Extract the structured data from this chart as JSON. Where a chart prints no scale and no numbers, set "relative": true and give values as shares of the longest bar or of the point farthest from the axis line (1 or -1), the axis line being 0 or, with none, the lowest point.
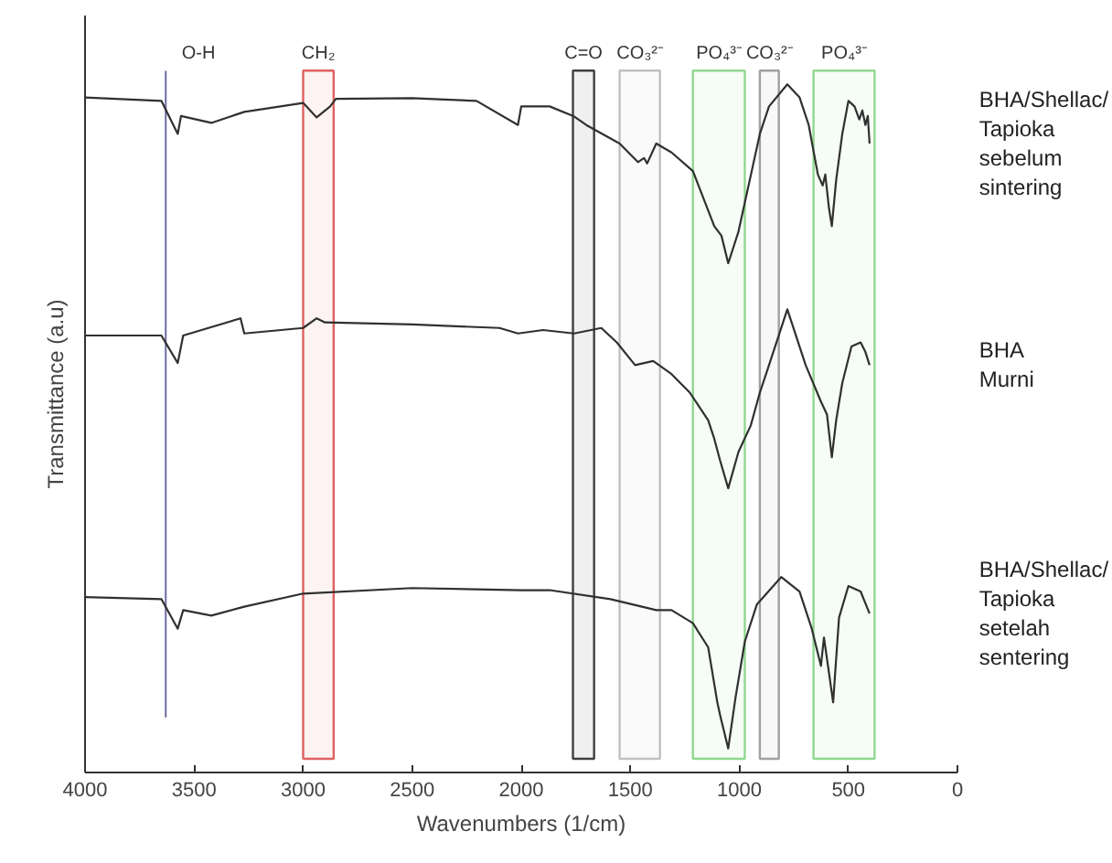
{
  "chart_data": {
    "type": "line",
    "relative": true,
    "xlabel": "Wavenumbers (1/cm)",
    "ylabel": "Transmittance (a.u)",
    "xlim": [
      4000,
      0
    ],
    "xticks": [
      4000,
      3500,
      3000,
      2500,
      2000,
      1500,
      1000,
      500,
      0
    ],
    "grid": false,
    "ref_lines": [
      {
        "axis": "x",
        "value": 3630,
        "label": "O-H",
        "color": "#6a6aa0"
      }
    ],
    "bands": [
      {
        "axis": "x",
        "from": 3000,
        "to": 2860,
        "label": "CH₂",
        "color": "#e06060"
      },
      {
        "axis": "x",
        "from": 1763,
        "to": 1666,
        "label": "C=O",
        "color": "#404040"
      },
      {
        "axis": "x",
        "from": 1549,
        "to": 1364,
        "label": "CO₃²⁻",
        "color": "#c0c0c0"
      },
      {
        "axis": "x",
        "from": 1213,
        "to": 975,
        "label": "PO₄³⁻",
        "color": "#90d890"
      },
      {
        "axis": "x",
        "from": 906,
        "to": 819,
        "label": "CO₃²⁻",
        "color": "#a0a0a0"
      },
      {
        "axis": "x",
        "from": 660,
        "to": 380,
        "label": "PO₄³⁻",
        "color": "#90d890"
      }
    ],
    "series": [
      {
        "name": "BHA/Shellac/Tapioka sebelum sintering",
        "color": "#303030",
        "x": [
          4000,
          3650,
          3575,
          3560,
          3421,
          3270,
          3000,
          2938,
          2876,
          2850,
          2500,
          2205,
          2015,
          2000,
          1870,
          1761,
          1702,
          1549,
          1465,
          1437,
          1423,
          1381,
          1311,
          1213,
          1115,
          1082,
          1051,
          1004,
          962,
          906,
          864,
          780,
          724,
          682,
          640,
          618,
          606,
          589,
          576,
          556,
          528,
          500,
          472,
          450,
          436,
          422,
          411,
          403
        ],
        "values": [
          0.981,
          0.976,
          0.928,
          0.954,
          0.944,
          0.96,
          0.973,
          0.952,
          0.968,
          0.979,
          0.98,
          0.976,
          0.941,
          0.968,
          0.968,
          0.954,
          0.941,
          0.914,
          0.887,
          0.893,
          0.885,
          0.914,
          0.901,
          0.874,
          0.794,
          0.78,
          0.74,
          0.786,
          0.847,
          0.928,
          0.968,
          1.0,
          0.981,
          0.941,
          0.869,
          0.853,
          0.869,
          0.82,
          0.794,
          0.861,
          0.928,
          0.976,
          0.968,
          0.949,
          0.962,
          0.941,
          0.954,
          0.914
        ]
      },
      {
        "name": "BHA Murni",
        "color": "#303030",
        "x": [
          4000,
          3650,
          3575,
          3550,
          3287,
          3270,
          3000,
          2938,
          2900,
          2500,
          2100,
          2015,
          1900,
          1758,
          1633,
          1562,
          1478,
          1395,
          1311,
          1227,
          1143,
          1115,
          1088,
          1051,
          1004,
          948,
          906,
          864,
          780,
          696,
          626,
          598,
          576,
          556,
          528,
          486,
          444,
          422,
          403
        ],
        "values": [
          0.635,
          0.635,
          0.595,
          0.635,
          0.66,
          0.638,
          0.646,
          0.66,
          0.654,
          0.651,
          0.646,
          0.638,
          0.643,
          0.638,
          0.646,
          0.625,
          0.592,
          0.598,
          0.579,
          0.552,
          0.512,
          0.485,
          0.453,
          0.413,
          0.466,
          0.504,
          0.552,
          0.592,
          0.673,
          0.592,
          0.539,
          0.52,
          0.458,
          0.512,
          0.566,
          0.619,
          0.625,
          0.611,
          0.592
        ]
      },
      {
        "name": "BHA/Shellac/Tapioka setelah sentering",
        "color": "#303030",
        "x": [
          4000,
          3650,
          3575,
          3550,
          3421,
          3270,
          3000,
          2500,
          2000,
          1870,
          1591,
          1381,
          1311,
          1213,
          1143,
          1101,
          1088,
          1051,
          1017,
          975,
          920,
          808,
          724,
          668,
          626,
          612,
          570,
          543,
          500,
          444,
          403
        ],
        "values": [
          0.255,
          0.252,
          0.209,
          0.236,
          0.228,
          0.241,
          0.26,
          0.268,
          0.265,
          0.265,
          0.252,
          0.236,
          0.236,
          0.217,
          0.182,
          0.102,
          0.083,
          0.035,
          0.11,
          0.19,
          0.244,
          0.284,
          0.263,
          0.209,
          0.155,
          0.196,
          0.102,
          0.225,
          0.271,
          0.263,
          0.231
        ]
      }
    ]
  }
}
